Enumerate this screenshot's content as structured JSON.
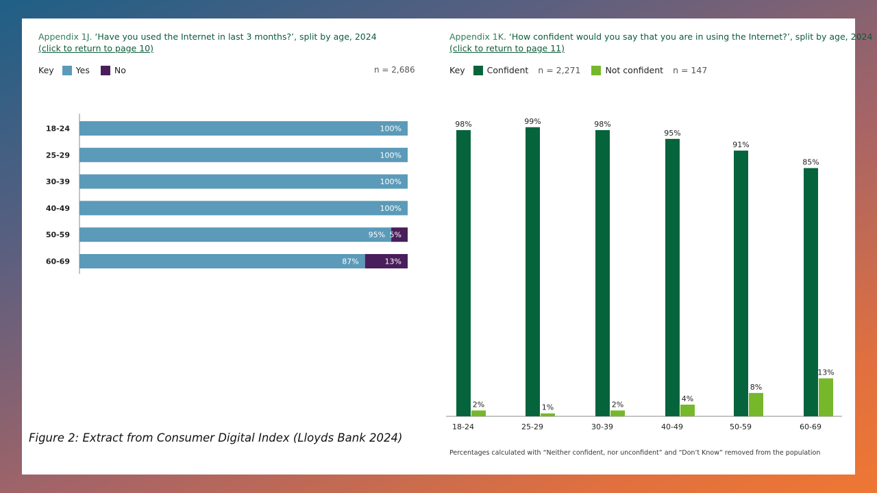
{
  "caption": "Figure 2: Extract from Consumer Digital Index (Lloyds Bank 2024)",
  "colors": {
    "yes": "#5b9ab8",
    "no": "#4a1e5a",
    "confident": "#05643c",
    "not_confident": "#76b82a"
  },
  "left_chart": {
    "title_prefix": "Appendix 1J.",
    "title_text": "‘Have you used the Internet in last 3 months?’, split by age, 2024",
    "link": "(click to return to page 10)",
    "key_label": "Key",
    "legend": [
      "Yes",
      "No"
    ],
    "n_label": "n = 2,686"
  },
  "right_chart": {
    "title_prefix": "Appendix 1K.",
    "title_text": "‘How confident would you say that you are in using the Internet?’, split by age, 2024",
    "link": "(click to return to page 11)",
    "key_label": "Key",
    "legend": [
      "Confident",
      "Not confident"
    ],
    "n_labels": [
      "n = 2,271",
      "n = 147"
    ],
    "footnote": "Percentages calculated with “Neither confident, nor unconfident” and “Don’t Know” removed from the population"
  },
  "chart_data": [
    {
      "type": "bar",
      "orientation": "horizontal",
      "stacked": true,
      "categories": [
        "18-24",
        "25-29",
        "30-39",
        "40-49",
        "50-59",
        "60-69"
      ],
      "series": [
        {
          "name": "Yes",
          "values": [
            100,
            100,
            100,
            100,
            95,
            87
          ],
          "labels": [
            "100%",
            "100%",
            "100%",
            "100%",
            "95%",
            "87%"
          ]
        },
        {
          "name": "No",
          "values": [
            0,
            0,
            0,
            0,
            5,
            13
          ],
          "labels": [
            "",
            "",
            "",
            "",
            "5%",
            "13%"
          ]
        }
      ],
      "xlim": [
        0,
        100
      ]
    },
    {
      "type": "bar",
      "orientation": "vertical",
      "categories": [
        "18-24",
        "25-29",
        "30-39",
        "40-49",
        "50-59",
        "60-69"
      ],
      "series": [
        {
          "name": "Confident",
          "values": [
            98,
            99,
            98,
            95,
            91,
            85
          ],
          "labels": [
            "98%",
            "99%",
            "98%",
            "95%",
            "91%",
            "85%"
          ]
        },
        {
          "name": "Not confident",
          "values": [
            2,
            1,
            2,
            4,
            8,
            13
          ],
          "labels": [
            "2%",
            "1%",
            "2%",
            "4%",
            "8%",
            "13%"
          ]
        }
      ],
      "ylim": [
        0,
        100
      ]
    }
  ]
}
